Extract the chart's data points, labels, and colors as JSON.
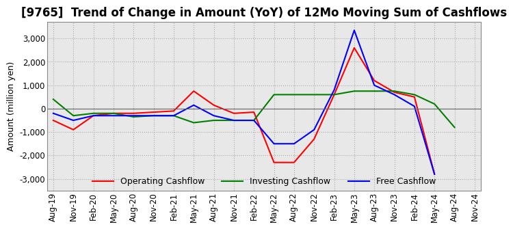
{
  "title": "[9765]  Trend of Change in Amount (YoY) of 12Mo Moving Sum of Cashflows",
  "ylabel": "Amount (million yen)",
  "ylim": [
    -3500,
    3700
  ],
  "yticks": [
    -3000,
    -2000,
    -1000,
    0,
    1000,
    2000,
    3000
  ],
  "legend": [
    "Operating Cashflow",
    "Investing Cashflow",
    "Free Cashflow"
  ],
  "legend_colors": [
    "#ff0000",
    "#008000",
    "#0000ff"
  ],
  "x_labels": [
    "Aug-19",
    "Nov-19",
    "Feb-20",
    "May-20",
    "Aug-20",
    "Nov-20",
    "Feb-21",
    "May-21",
    "Aug-21",
    "Nov-21",
    "Feb-22",
    "May-22",
    "Aug-22",
    "Nov-22",
    "Feb-23",
    "May-23",
    "Aug-23",
    "Nov-23",
    "Feb-24",
    "May-24",
    "Aug-24",
    "Nov-24"
  ],
  "operating": [
    -500,
    -900,
    -300,
    -200,
    -200,
    -150,
    -100,
    750,
    150,
    -200,
    -150,
    -2300,
    -2300,
    -1300,
    600,
    2600,
    1200,
    700,
    500,
    -2800,
    null,
    null
  ],
  "investing": [
    400,
    -300,
    -200,
    -200,
    -350,
    -300,
    -300,
    -600,
    -500,
    -500,
    -500,
    600,
    600,
    600,
    600,
    750,
    750,
    750,
    600,
    200,
    -800,
    null
  ],
  "free": [
    -200,
    -500,
    -300,
    -300,
    -300,
    -300,
    -300,
    150,
    -300,
    -500,
    -500,
    -1500,
    -1500,
    -900,
    800,
    3350,
    1000,
    600,
    100,
    -2800,
    null,
    null
  ],
  "background_color": "#e8e8e8",
  "plot_background": "#e8e8e8",
  "grid_color": "#ffffff",
  "title_fontsize": 12,
  "tick_fontsize": 8.5,
  "label_fontsize": 9
}
